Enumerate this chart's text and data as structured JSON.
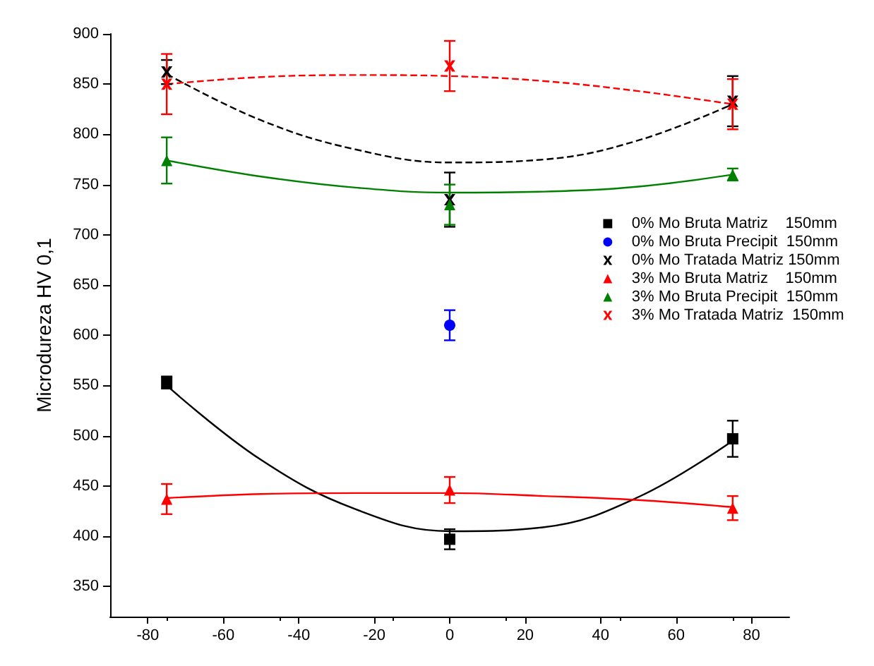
{
  "chart_data": {
    "type": "scatter",
    "ylabel": "Microdureza HV 0,1",
    "xlim": [
      -90,
      90
    ],
    "xticks": [
      -80,
      -60,
      -40,
      -20,
      0,
      20,
      40,
      60,
      80
    ],
    "ylim": [
      320,
      900
    ],
    "yticks": [
      350,
      400,
      450,
      500,
      550,
      600,
      650,
      700,
      750,
      800,
      850,
      900
    ],
    "grid": false,
    "legend": "right",
    "series": [
      {
        "name": "0% Mo Bruta Matriz    150mm",
        "color": "#000000",
        "marker": "square",
        "x": [
          -75,
          0,
          75
        ],
        "values": [
          553,
          397,
          497
        ],
        "errors": [
          6,
          10,
          18
        ]
      },
      {
        "name": "0% Mo Bruta Precipit  150mm",
        "color": "#0000ff",
        "marker": "circle",
        "x": [
          0
        ],
        "values": [
          610
        ],
        "errors": [
          15
        ]
      },
      {
        "name": "0% Mo Tratada Matriz 150mm",
        "color": "#000000",
        "marker": "cross",
        "x": [
          -75,
          0,
          75
        ],
        "values": [
          862,
          735,
          833
        ],
        "errors": [
          12,
          27,
          25
        ]
      },
      {
        "name": "3% Mo Bruta Matriz    150mm",
        "color": "#ff0000",
        "marker": "triangle",
        "x": [
          -75,
          0,
          75
        ],
        "values": [
          437,
          446,
          428
        ],
        "errors": [
          15,
          13,
          12
        ]
      },
      {
        "name": "3% Mo Bruta Precipit  150mm",
        "color": "#008000",
        "marker": "triangle",
        "x": [
          -75,
          0,
          75
        ],
        "values": [
          774,
          730,
          760
        ],
        "errors": [
          23,
          20,
          6
        ]
      },
      {
        "name": "3% Mo Tratada Matriz  150mm",
        "color": "#ff0000",
        "marker": "cross",
        "x": [
          -75,
          0,
          75
        ],
        "values": [
          850,
          868,
          830
        ],
        "errors": [
          30,
          25,
          25
        ]
      },
      {
        "type": "line",
        "color": "#000000",
        "line_style": "solid",
        "x": [
          -75,
          -50,
          -25,
          0,
          25,
          50,
          75
        ],
        "values": [
          550,
          476,
          427,
          405,
          409,
          439,
          495
        ]
      },
      {
        "type": "line",
        "color": "#000000",
        "line_style": "dashed",
        "x": [
          -75,
          -50,
          -25,
          0,
          25,
          50,
          75
        ],
        "values": [
          860,
          814,
          785,
          772,
          775,
          794,
          830
        ]
      },
      {
        "type": "line",
        "color": "#ff0000",
        "line_style": "solid",
        "x": [
          -75,
          -50,
          -25,
          0,
          25,
          50,
          75
        ],
        "values": [
          438,
          442,
          443,
          443,
          440,
          436,
          429
        ]
      },
      {
        "type": "line",
        "color": "#008000",
        "line_style": "solid",
        "x": [
          -75,
          -50,
          -25,
          0,
          25,
          50,
          75
        ],
        "values": [
          774,
          758,
          747,
          742,
          743,
          748,
          760
        ]
      },
      {
        "type": "line",
        "color": "#ff0000",
        "line_style": "dashed",
        "x": [
          -75,
          -50,
          -25,
          0,
          25,
          50,
          75
        ],
        "values": [
          850,
          857,
          859,
          858,
          853,
          843,
          830
        ]
      }
    ]
  }
}
